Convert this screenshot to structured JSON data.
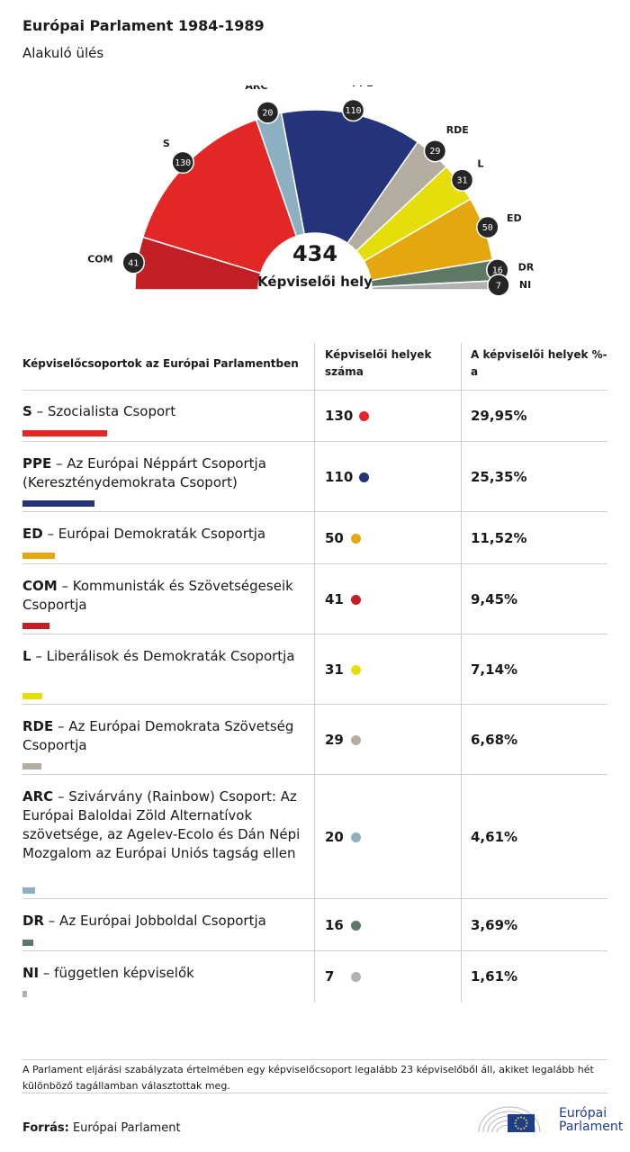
{
  "title": "Európai Parlament 1984-1989",
  "subtitle": "Alakuló ülés",
  "chart_data": {
    "type": "pie",
    "total": 434,
    "total_label": "Képviselői hely",
    "series": [
      {
        "abbr": "COM",
        "seats": 41,
        "color": "#c21f24"
      },
      {
        "abbr": "S",
        "seats": 130,
        "color": "#e32726"
      },
      {
        "abbr": "ARC",
        "seats": 20,
        "color": "#8dafc2"
      },
      {
        "abbr": "PPE",
        "seats": 110,
        "color": "#25347a"
      },
      {
        "abbr": "RDE",
        "seats": 29,
        "color": "#b3aca0"
      },
      {
        "abbr": "L",
        "seats": 31,
        "color": "#e6de0a"
      },
      {
        "abbr": "ED",
        "seats": 50,
        "color": "#e4a70e"
      },
      {
        "abbr": "DR",
        "seats": 16,
        "color": "#5f7767"
      },
      {
        "abbr": "NI",
        "seats": 7,
        "color": "#b2b2b2"
      }
    ]
  },
  "table": {
    "col1_header": "Képviselőcsoportok az Európai Parlamentben",
    "col2_header": "Képviselői helyek száma",
    "col3_header": "A képviselői helyek %-a",
    "rows": [
      {
        "abbr": "S",
        "name": " – Szocialista Csoport",
        "seats": "130",
        "pct": "29,95%",
        "color": "#e32726",
        "share": 29.95
      },
      {
        "abbr": "PPE",
        "name": " – Az Európai Néppárt Csoportja (Kereszténydemokrata Csoport)",
        "seats": "110",
        "pct": "25,35%",
        "color": "#25347a",
        "share": 25.35
      },
      {
        "abbr": "ED",
        "name": " – Európai Demokraták Csoportja",
        "seats": "50",
        "pct": "11,52%",
        "color": "#e4a70e",
        "share": 11.52
      },
      {
        "abbr": "COM",
        "name": " – Kommunisták és Szövetségeseik Csoportja",
        "seats": "41",
        "pct": "9,45%",
        "color": "#c21f24",
        "share": 9.45
      },
      {
        "abbr": "L",
        "name": " – Liberálisok és Demokraták Csoportja",
        "seats": "31",
        "pct": "7,14%",
        "color": "#e6de0a",
        "share": 7.14
      },
      {
        "abbr": "RDE",
        "name": " – Az Európai Demokrata Szövetség Csoportja",
        "seats": "29",
        "pct": "6,68%",
        "color": "#b3aca0",
        "share": 6.68
      },
      {
        "abbr": "ARC",
        "name": " – Szivárvány (Rainbow) Csoport: Az Európai Baloldai Zöld Alternatívok szövetsége, az Agelev-Ecolo és Dán Népi Mozgalom az Európai Uniós tagság ellen",
        "seats": "20",
        "pct": "4,61%",
        "color": "#8dafc2",
        "share": 4.61
      },
      {
        "abbr": "DR",
        "name": " – Az Európai Jobboldal Csoportja",
        "seats": "16",
        "pct": "3,69%",
        "color": "#5f7767",
        "share": 3.69
      },
      {
        "abbr": "NI",
        "name": " – független képviselők",
        "seats": "7",
        "pct": "1,61%",
        "color": "#b2b2b2",
        "share": 1.61
      }
    ]
  },
  "note": "A Parlament eljárási szabályzata értelmében egy képviselőcsoport legalább 23 képviselőből áll, akiket legalább hét különböző tagállamban választottak meg.",
  "source_label": "Forrás:",
  "source_value": "Európai Parlament",
  "logo": {
    "line1": "Európai",
    "line2": "Parlament",
    "icon": "eu-flag-icon"
  }
}
